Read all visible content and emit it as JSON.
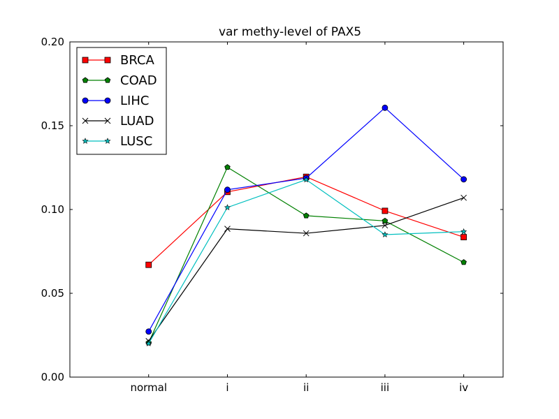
{
  "chart_data": {
    "type": "line",
    "title": "var methy-level of PAX5",
    "xlabel": "",
    "ylabel": "",
    "categories": [
      "normal",
      "i",
      "ii",
      "iii",
      "iv"
    ],
    "xlim": [
      -1,
      4.5
    ],
    "ylim": [
      0.0,
      0.2
    ],
    "yticks": [
      0.0,
      0.05,
      0.1,
      0.15,
      0.2
    ],
    "ytick_labels": [
      "0.00",
      "0.05",
      "0.10",
      "0.15",
      "0.20"
    ],
    "grid": false,
    "legend_position": "top-left",
    "series": [
      {
        "name": "BRCA",
        "color": "#ff0000",
        "marker": "square",
        "values": [
          0.067,
          0.1105,
          0.1195,
          0.0992,
          0.0835
        ]
      },
      {
        "name": "COAD",
        "color": "#008000",
        "marker": "pentagon",
        "values": [
          0.0205,
          0.1252,
          0.0963,
          0.0932,
          0.0685
        ]
      },
      {
        "name": "LIHC",
        "color": "#0000ff",
        "marker": "circle",
        "values": [
          0.0272,
          0.1118,
          0.1187,
          0.1607,
          0.118
        ]
      },
      {
        "name": "LUAD",
        "color": "#000000",
        "marker": "x",
        "values": [
          0.0215,
          0.0885,
          0.0858,
          0.0905,
          0.107
        ]
      },
      {
        "name": "LUSC",
        "color": "#00bfbf",
        "marker": "star",
        "values": [
          0.02,
          0.1012,
          0.1178,
          0.085,
          0.0868
        ]
      }
    ]
  }
}
